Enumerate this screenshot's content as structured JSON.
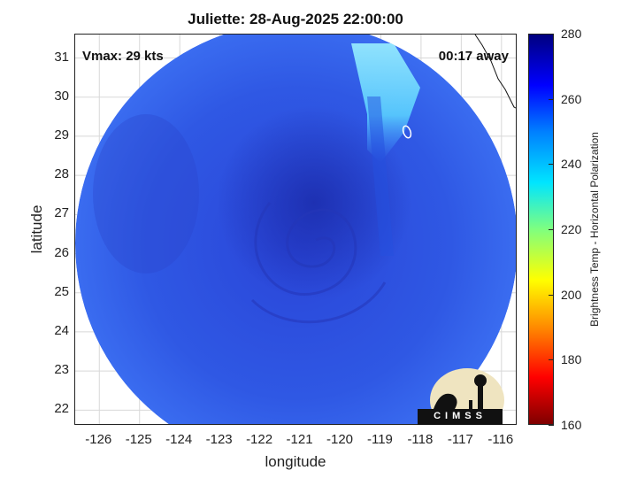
{
  "title": "Juliette: 28-Aug-2025 22:00:00",
  "vmax_label": "Vmax: 29 kts",
  "away_label": "00:17 away",
  "xlabel": "longitude",
  "ylabel": "latitude",
  "x_ticks": [
    "-126",
    "-125",
    "-124",
    "-123",
    "-122",
    "-121",
    "-120",
    "-119",
    "-118",
    "-117",
    "-116"
  ],
  "y_ticks": [
    "31",
    "30",
    "29",
    "28",
    "27",
    "26",
    "25",
    "24",
    "23",
    "22"
  ],
  "colorbar": {
    "label": "Brightness Temp - Horizontal Polarization",
    "ticks": [
      "280",
      "260",
      "240",
      "220",
      "200",
      "180",
      "160"
    ],
    "range": [
      160,
      280
    ],
    "colormap": "jet"
  },
  "map": {
    "x_range": [
      -126.6,
      -115.6
    ],
    "y_range": [
      21.6,
      31.6
    ],
    "grid": true,
    "storm_center": {
      "lon": -120.8,
      "lat": 26.5
    },
    "background_color": "#2e55e6",
    "core_color": "#1a2fb0",
    "warm_patch_color": "#7fe8ff"
  },
  "logo": {
    "name": "cimss-logo",
    "text": "CIMSS"
  }
}
